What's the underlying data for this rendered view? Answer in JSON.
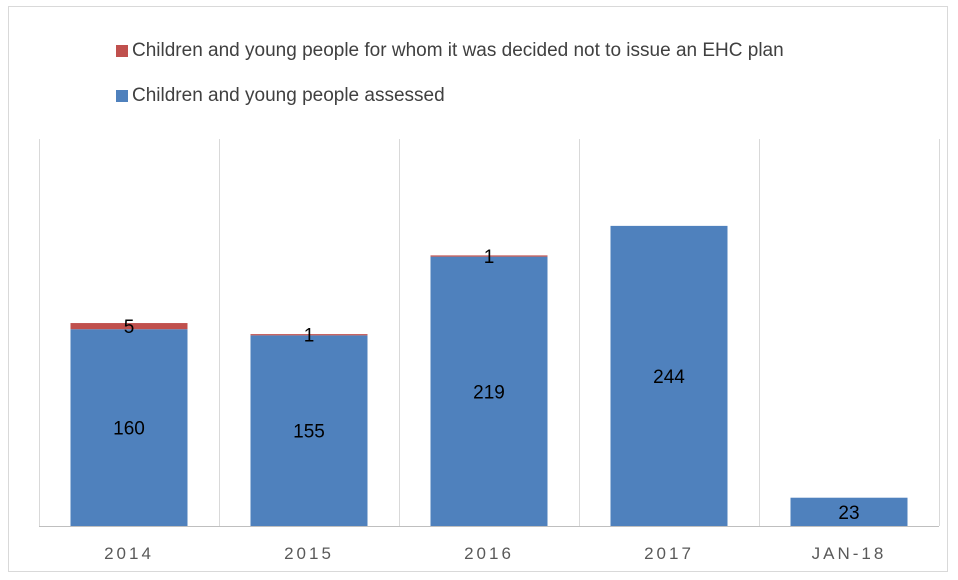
{
  "chart_data": {
    "type": "bar",
    "stacked": true,
    "categories": [
      "2014",
      "2015",
      "2016",
      "2017",
      "JAN-18"
    ],
    "series": [
      {
        "name": "Children and young people assessed",
        "color": "#4f81bd",
        "values": [
          160,
          155,
          219,
          244,
          23
        ],
        "labels": [
          "160",
          "155",
          "219",
          "244",
          "23"
        ]
      },
      {
        "name": "Children and young people for whom it was decided not to issue an EHC plan",
        "color": "#c0504d",
        "values": [
          5,
          1,
          1,
          0,
          0
        ],
        "labels": [
          "5",
          "1",
          "1",
          "",
          ""
        ]
      }
    ],
    "legend": [
      {
        "name": "Children and young people for whom it was decided not to issue an EHC plan",
        "color": "#c0504d"
      },
      {
        "name": "Children and young people assessed",
        "color": "#4f81bd"
      }
    ],
    "legend_position": "top",
    "ylim": [
      0,
      260
    ],
    "grid": "vertical separators",
    "y_axis_visible": false
  }
}
